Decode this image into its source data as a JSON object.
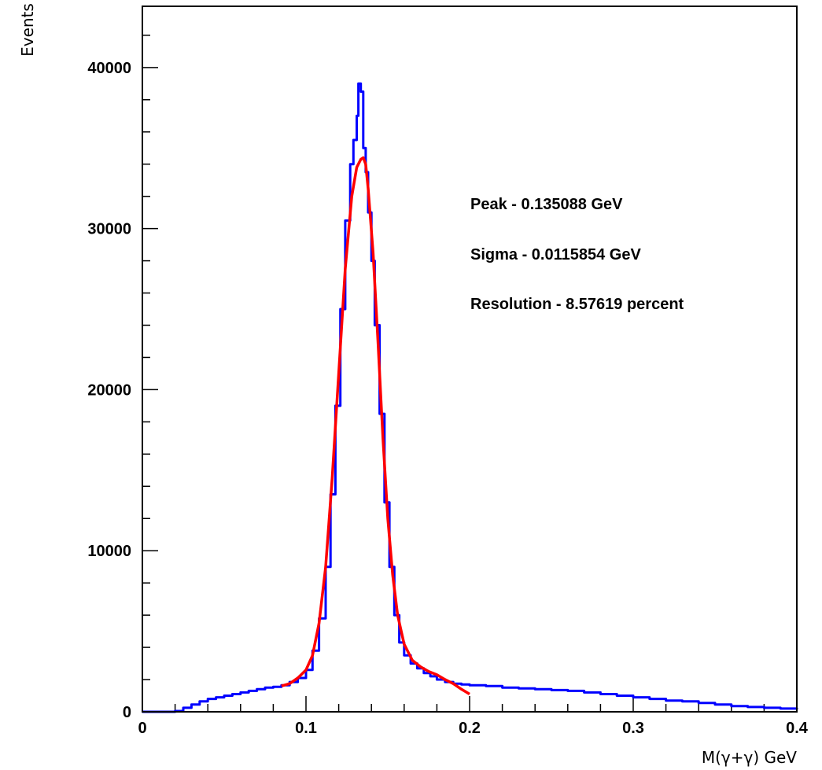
{
  "chart_data": {
    "type": "line",
    "title": "",
    "xlabel": "M(γ+γ) GeV",
    "ylabel": "Events",
    "xlim": [
      0,
      0.4
    ],
    "ylim": [
      0,
      43800
    ],
    "grid": false,
    "x_ticks": [
      {
        "value": 0,
        "label": "0"
      },
      {
        "value": 0.1,
        "label": "0.1"
      },
      {
        "value": 0.2,
        "label": "0.2"
      },
      {
        "value": 0.3,
        "label": "0.3"
      },
      {
        "value": 0.4,
        "label": "0.4"
      }
    ],
    "y_ticks": [
      {
        "value": 0,
        "label": "0"
      },
      {
        "value": 10000,
        "label": "10000"
      },
      {
        "value": 20000,
        "label": "20000"
      },
      {
        "value": 30000,
        "label": "30000"
      },
      {
        "value": 40000,
        "label": "40000"
      }
    ],
    "annotations": [
      "Peak - 0.135088 GeV",
      "Sigma - 0.0115854 GeV",
      "Resolution - 8.57619 percent"
    ],
    "series": [
      {
        "style": "histogram",
        "color": "#0000ff",
        "x": [
          0,
          0.01,
          0.02,
          0.025,
          0.03,
          0.035,
          0.04,
          0.045,
          0.05,
          0.055,
          0.06,
          0.065,
          0.07,
          0.075,
          0.08,
          0.085,
          0.09,
          0.095,
          0.1,
          0.104,
          0.108,
          0.112,
          0.115,
          0.118,
          0.121,
          0.124,
          0.127,
          0.129,
          0.131,
          0.132,
          0.1335,
          0.135,
          0.1365,
          0.138,
          0.14,
          0.142,
          0.145,
          0.148,
          0.151,
          0.154,
          0.157,
          0.16,
          0.164,
          0.168,
          0.172,
          0.176,
          0.18,
          0.185,
          0.19,
          0.195,
          0.2,
          0.21,
          0.22,
          0.23,
          0.24,
          0.25,
          0.26,
          0.27,
          0.28,
          0.29,
          0.3,
          0.31,
          0.32,
          0.33,
          0.34,
          0.35,
          0.36,
          0.37,
          0.38,
          0.39,
          0.4
        ],
        "y": [
          0,
          0,
          50,
          250,
          450,
          650,
          800,
          900,
          1000,
          1100,
          1200,
          1300,
          1400,
          1500,
          1550,
          1650,
          1850,
          2100,
          2600,
          3800,
          5800,
          9000,
          13500,
          19000,
          25000,
          30500,
          34000,
          35500,
          37000,
          39000,
          38500,
          35000,
          33500,
          31000,
          28000,
          24000,
          18500,
          13000,
          9000,
          6000,
          4300,
          3500,
          3000,
          2700,
          2400,
          2200,
          2000,
          1850,
          1750,
          1700,
          1650,
          1600,
          1500,
          1450,
          1400,
          1350,
          1300,
          1200,
          1100,
          1000,
          900,
          800,
          700,
          650,
          550,
          450,
          350,
          300,
          250,
          200,
          150
        ]
      },
      {
        "style": "fit",
        "color": "#ff0000",
        "x": [
          0.085,
          0.09,
          0.095,
          0.1,
          0.104,
          0.108,
          0.112,
          0.116,
          0.12,
          0.124,
          0.128,
          0.131,
          0.1335,
          0.135,
          0.1365,
          0.138,
          0.141,
          0.144,
          0.147,
          0.15,
          0.153,
          0.156,
          0.16,
          0.165,
          0.17,
          0.175,
          0.18,
          0.185,
          0.19,
          0.195,
          0.2
        ],
        "y": [
          1600,
          1750,
          2100,
          2600,
          3500,
          5500,
          9000,
          14500,
          21000,
          27500,
          32000,
          33800,
          34300,
          34400,
          34000,
          32500,
          28500,
          23000,
          17000,
          12000,
          8500,
          6000,
          4200,
          3200,
          2800,
          2500,
          2300,
          2000,
          1750,
          1400,
          1100
        ]
      }
    ]
  }
}
